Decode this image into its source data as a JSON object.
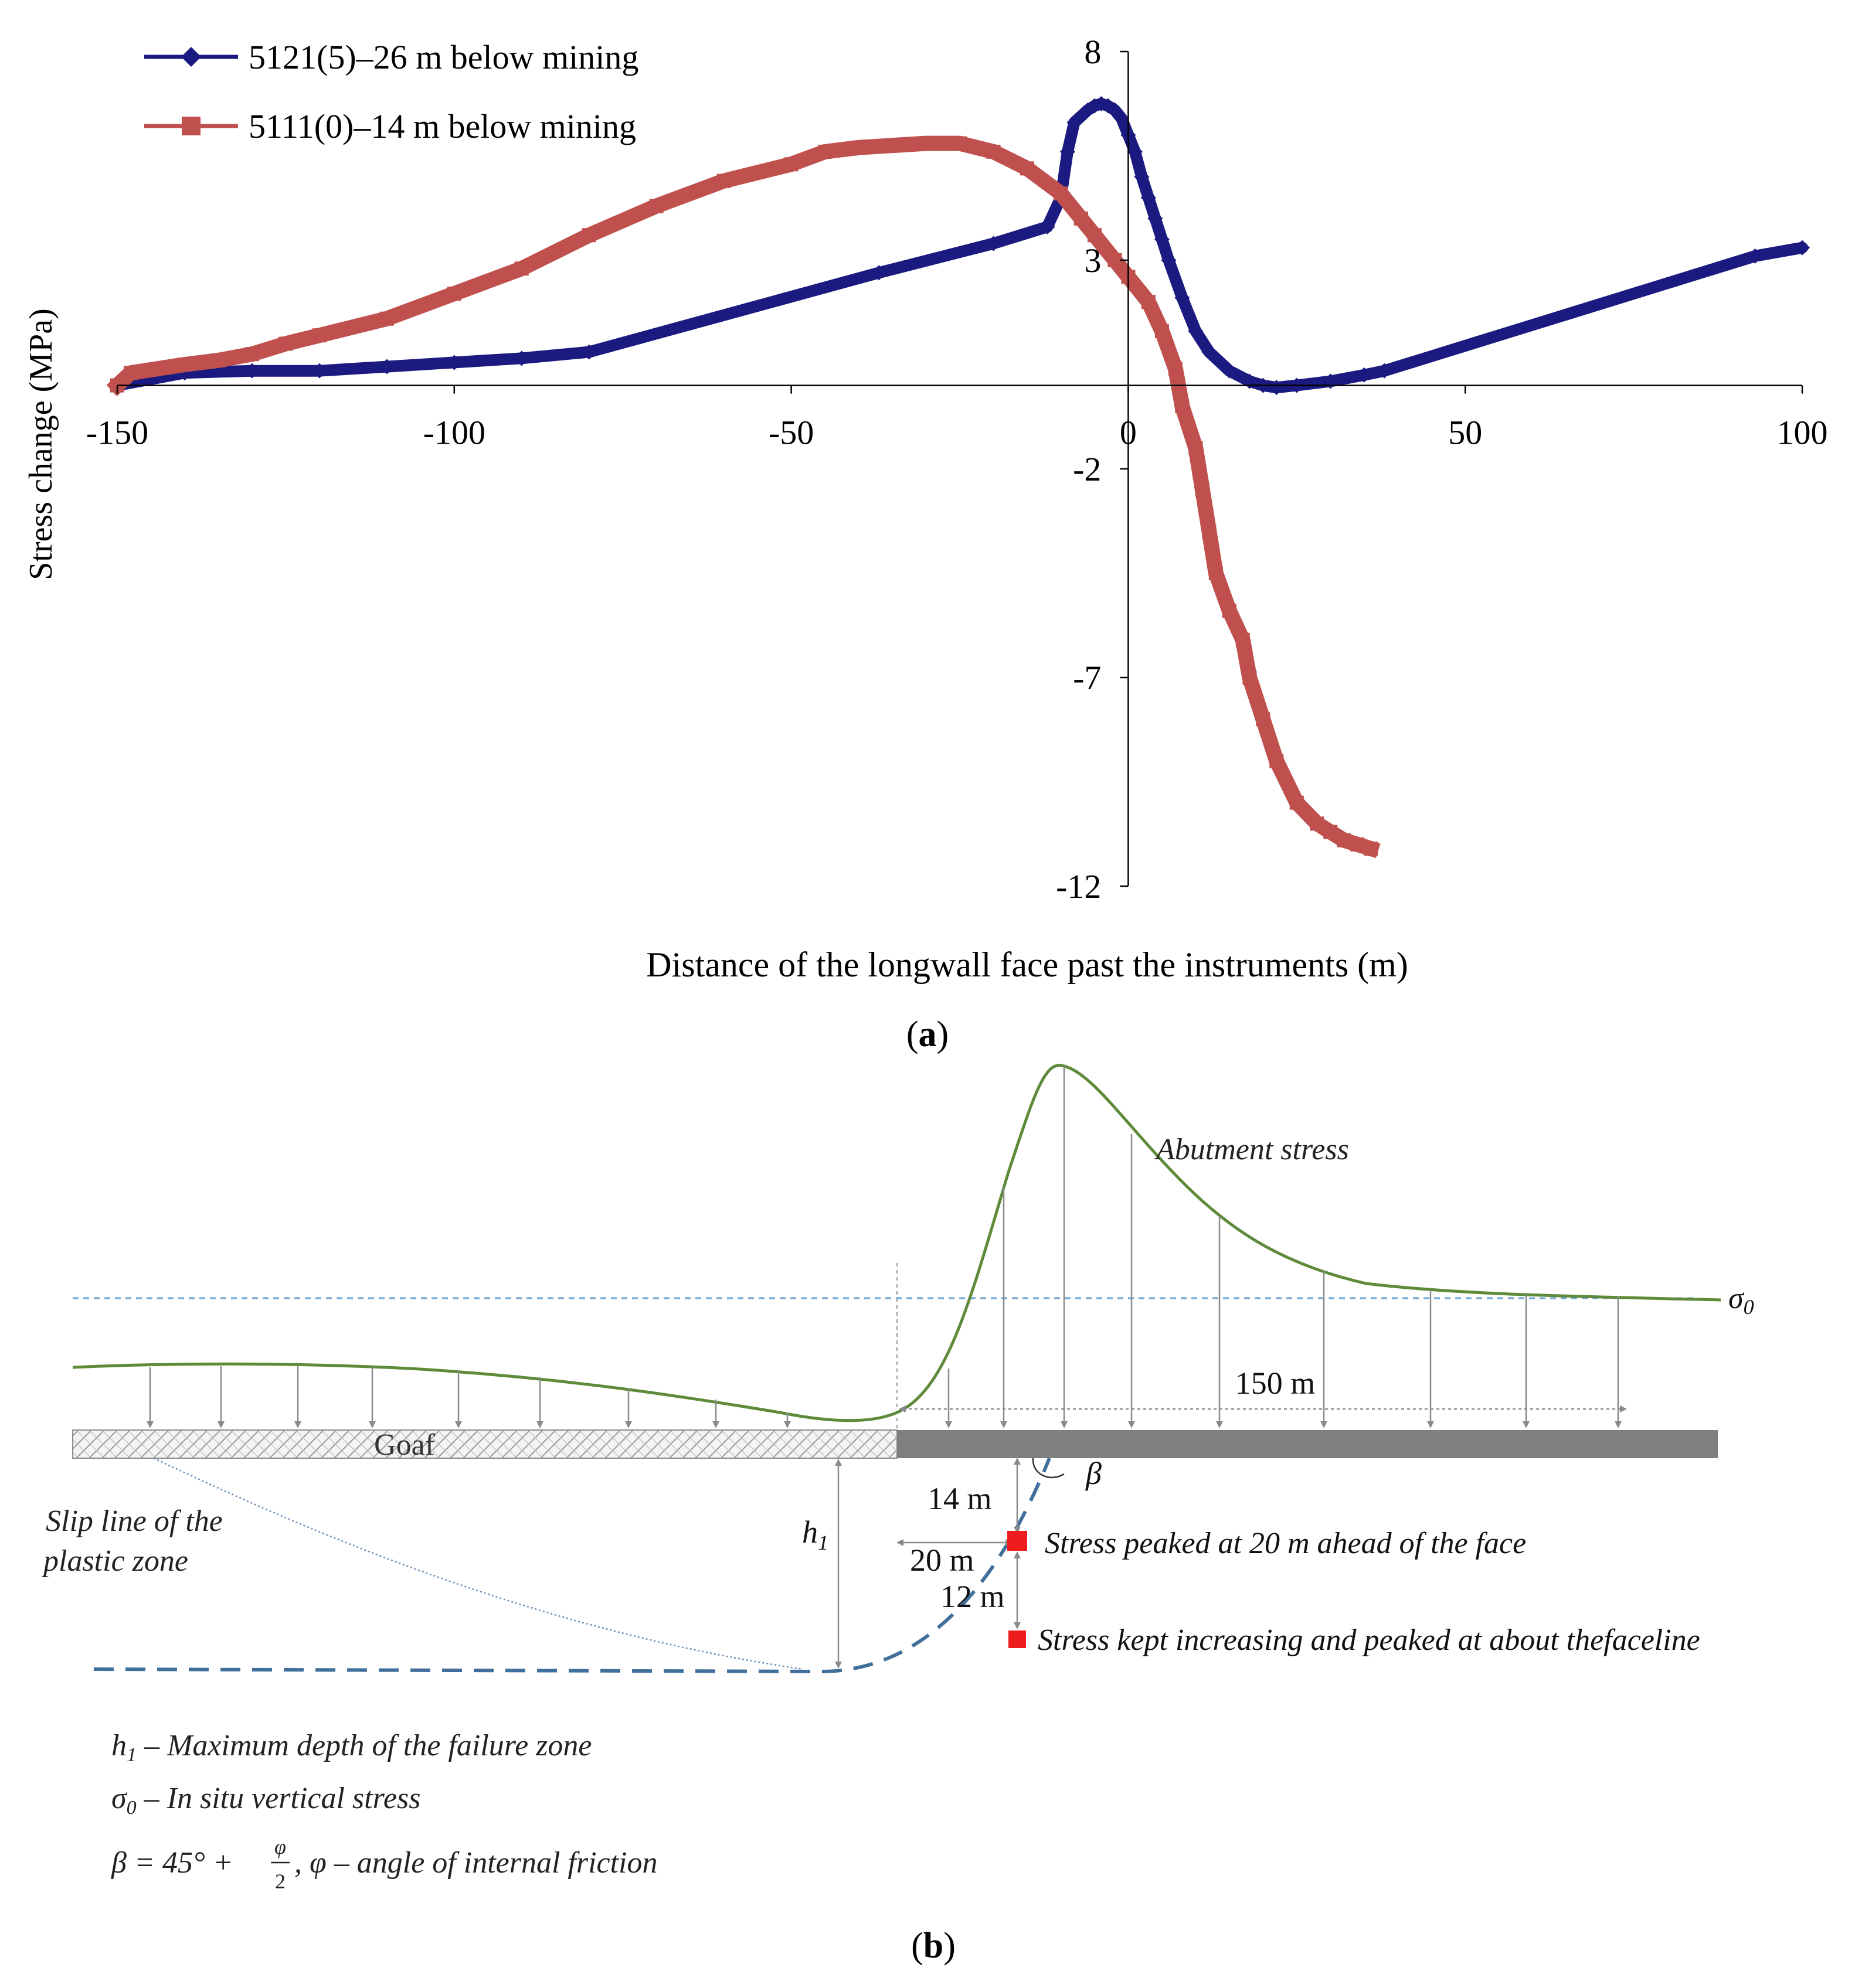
{
  "chart_data": {
    "type": "line",
    "title": "",
    "xlabel": "Distance of the longwall face past the instruments (m)",
    "ylabel": "Stress change (MPa)",
    "xlim": [
      -150,
      100
    ],
    "ylim": [
      -12,
      8
    ],
    "x_ticks": [
      -150,
      -100,
      -50,
      0,
      50,
      100
    ],
    "y_ticks": [
      8,
      3,
      -2,
      -7,
      -12
    ],
    "series": [
      {
        "name": "5121(5)–26 m below mining",
        "color": "#1a1a80",
        "marker": "diamond",
        "x": [
          -150,
          -140,
          -130,
          -120,
          -110,
          -100,
          -90,
          -80,
          -37,
          -20,
          -12,
          -10,
          -9,
          -8,
          -6,
          -5,
          -4,
          -3,
          -2,
          -1,
          0,
          1,
          2,
          3,
          4,
          5,
          6,
          8,
          10,
          12,
          15,
          18,
          20,
          22,
          25,
          30,
          35,
          38,
          93,
          100
        ],
        "y": [
          0,
          0.3,
          0.35,
          0.35,
          0.45,
          0.55,
          0.65,
          0.8,
          2.7,
          3.4,
          3.8,
          4.5,
          5.6,
          6.3,
          6.6,
          6.7,
          6.75,
          6.7,
          6.6,
          6.4,
          6.0,
          5.6,
          5.0,
          4.5,
          4.0,
          3.5,
          3.0,
          2.1,
          1.3,
          0.8,
          0.35,
          0.1,
          0,
          -0.05,
          0,
          0.1,
          0.25,
          0.35,
          3.1,
          3.3
        ]
      },
      {
        "name": "5111(0)–14 m below mining",
        "color": "#c0504d",
        "marker": "square",
        "x": [
          -150,
          -148,
          -140,
          -135,
          -130,
          -125,
          -120,
          -110,
          -100,
          -90,
          -80,
          -70,
          -60,
          -50,
          -45,
          -40,
          -35,
          -30,
          -25,
          -20,
          -15,
          -10,
          -7,
          -5,
          -2,
          0,
          3,
          5,
          7,
          8,
          10,
          11,
          12,
          13,
          15,
          17,
          18,
          20,
          22,
          25,
          28,
          30,
          32,
          34,
          36
        ],
        "y": [
          0,
          0.3,
          0.5,
          0.6,
          0.75,
          1.0,
          1.2,
          1.6,
          2.2,
          2.8,
          3.6,
          4.3,
          4.9,
          5.3,
          5.6,
          5.7,
          5.75,
          5.8,
          5.8,
          5.6,
          5.2,
          4.6,
          4.0,
          3.6,
          3.0,
          2.6,
          2.0,
          1.3,
          0.4,
          -0.5,
          -1.5,
          -2.5,
          -3.5,
          -4.5,
          -5.4,
          -6.1,
          -7.0,
          -8.0,
          -9.0,
          -10.0,
          -10.5,
          -10.7,
          -10.9,
          -11.0,
          -11.1
        ]
      }
    ]
  },
  "panel_a_label": "a",
  "panel_b_label": "b",
  "diagram": {
    "abutment_label": "Abutment stress",
    "sigma_label": "σ",
    "sigma_sub": "0",
    "dist_150": "150 m",
    "goaf_label": "Goaf",
    "beta_label": "β",
    "dist_14": "14 m",
    "dist_20": "20 m",
    "dist_12": "12 m",
    "h_label": "h",
    "h_sub": "1",
    "slip_line_1": "Slip line of the",
    "slip_line_2": "plastic zone",
    "peak_20": "Stress peaked at 20 m ahead of the face",
    "peak_face": "Stress kept increasing and peaked at about thefaceline",
    "legend_h_sym": "h",
    "legend_h_sub": "1",
    "legend_h_text": " – Maximum depth of the failure zone",
    "legend_sigma_sym": "σ",
    "legend_sigma_sub": "0",
    "legend_sigma_text": " – In situ vertical stress",
    "legend_beta_1": "β = 45° + ",
    "legend_beta_phi": "φ",
    "legend_beta_2": "2",
    "legend_beta_3": ", φ – angle of internal friction"
  }
}
